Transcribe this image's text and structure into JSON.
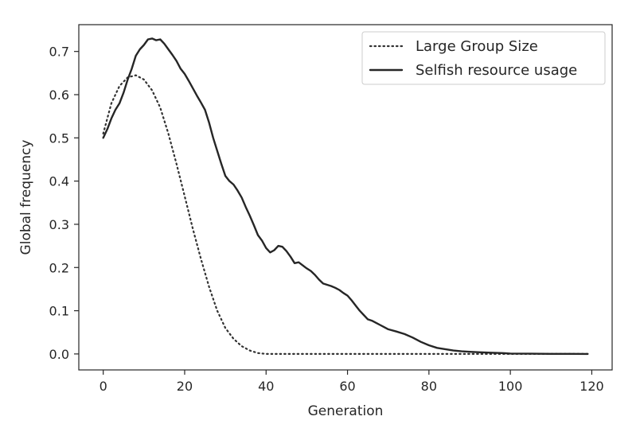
{
  "chart_data": {
    "type": "line",
    "title": "",
    "xlabel": "Generation",
    "ylabel": "Global frequency",
    "xlim": [
      -6,
      125
    ],
    "ylim": [
      -0.037,
      0.762
    ],
    "xticks": [
      0,
      20,
      40,
      60,
      80,
      100,
      120
    ],
    "yticks": [
      0.0,
      0.1,
      0.2,
      0.3,
      0.4,
      0.5,
      0.6,
      0.7
    ],
    "xtick_labels": [
      "0",
      "20",
      "40",
      "60",
      "80",
      "100",
      "120"
    ],
    "ytick_labels": [
      "0.0",
      "0.1",
      "0.2",
      "0.3",
      "0.4",
      "0.5",
      "0.6",
      "0.7"
    ],
    "grid": false,
    "legend_position": "top-right",
    "series": [
      {
        "name": "Large Group Size",
        "style": "dotted",
        "color": "#333333",
        "x": [
          0,
          2,
          4,
          6,
          8,
          10,
          12,
          14,
          16,
          18,
          20,
          22,
          24,
          26,
          28,
          30,
          32,
          34,
          36,
          38,
          40,
          42,
          60,
          80,
          100,
          119
        ],
        "y": [
          0.51,
          0.58,
          0.62,
          0.64,
          0.645,
          0.635,
          0.61,
          0.57,
          0.51,
          0.44,
          0.365,
          0.29,
          0.22,
          0.155,
          0.1,
          0.06,
          0.035,
          0.018,
          0.008,
          0.002,
          0.0,
          0.0,
          0.0,
          0.0,
          0.0,
          0.0
        ]
      },
      {
        "name": "Selfish resource usage",
        "style": "solid",
        "color": "#262626",
        "x": [
          0,
          1,
          2,
          3,
          4,
          5,
          6,
          7,
          8,
          9,
          10,
          11,
          12,
          13,
          14,
          15,
          16,
          17,
          18,
          19,
          20,
          21,
          22,
          23,
          24,
          25,
          26,
          27,
          28,
          29,
          30,
          31,
          32,
          33,
          34,
          35,
          36,
          37,
          38,
          39,
          40,
          41,
          42,
          43,
          44,
          45,
          46,
          47,
          48,
          49,
          50,
          51,
          52,
          53,
          54,
          55,
          56,
          57,
          58,
          59,
          60,
          61,
          62,
          63,
          64,
          65,
          66,
          67,
          68,
          69,
          70,
          72,
          74,
          76,
          78,
          80,
          82,
          84,
          86,
          88,
          90,
          92,
          95,
          98,
          100,
          105,
          110,
          115,
          119
        ],
        "y": [
          0.5,
          0.52,
          0.545,
          0.565,
          0.58,
          0.605,
          0.635,
          0.66,
          0.69,
          0.705,
          0.715,
          0.728,
          0.73,
          0.726,
          0.728,
          0.718,
          0.705,
          0.692,
          0.678,
          0.66,
          0.648,
          0.632,
          0.615,
          0.598,
          0.582,
          0.565,
          0.535,
          0.5,
          0.47,
          0.44,
          0.412,
          0.4,
          0.392,
          0.378,
          0.362,
          0.34,
          0.32,
          0.298,
          0.275,
          0.262,
          0.245,
          0.235,
          0.24,
          0.25,
          0.248,
          0.238,
          0.225,
          0.21,
          0.212,
          0.205,
          0.198,
          0.192,
          0.183,
          0.172,
          0.163,
          0.16,
          0.157,
          0.153,
          0.148,
          0.141,
          0.135,
          0.124,
          0.112,
          0.1,
          0.09,
          0.08,
          0.077,
          0.072,
          0.067,
          0.062,
          0.057,
          0.052,
          0.046,
          0.038,
          0.028,
          0.02,
          0.014,
          0.011,
          0.008,
          0.006,
          0.005,
          0.004,
          0.003,
          0.002,
          0.001,
          0.0005,
          0.0002,
          0.0001,
          0.0
        ]
      }
    ]
  }
}
